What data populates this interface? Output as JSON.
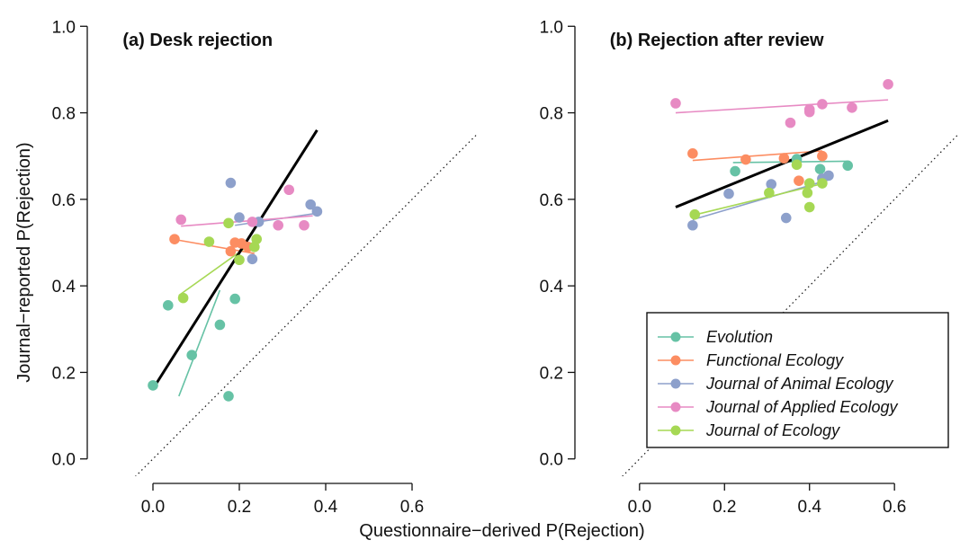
{
  "figure": {
    "ylabel": "Journal−reported P(Rejection)",
    "xlabel": "Questionnaire−derived P(Rejection)"
  },
  "colors": {
    "Evolution": "#66c2a5",
    "Functional Ecology": "#fc8d62",
    "Journal of Animal Ecology": "#8da0cb",
    "Journal of Applied Ecology": "#e78ac3",
    "Journal of Ecology": "#a6d854",
    "overall": "#000000"
  },
  "legend": {
    "placement": "bottom-right of panel b",
    "entries": [
      "Evolution",
      "Functional Ecology",
      "Journal of Animal Ecology",
      "Journal of Applied Ecology",
      "Journal of Ecology"
    ]
  },
  "chart_data": [
    {
      "type": "scatter",
      "panel_label": "(a)",
      "title": "Desk rejection",
      "xlim": [
        -0.15,
        0.75
      ],
      "ylim": [
        -0.04,
        1.04
      ],
      "xticks": [
        "0.0",
        "0.2",
        "0.4",
        "0.6"
      ],
      "yticks": [
        "0.0",
        "0.2",
        "0.4",
        "0.6",
        "0.8",
        "1.0"
      ],
      "reference_line": "y = x (dotted)",
      "series": [
        {
          "name": "Evolution",
          "points": [
            [
              0.0,
              0.17
            ],
            [
              0.035,
              0.355
            ],
            [
              0.09,
              0.24
            ],
            [
              0.155,
              0.31
            ],
            [
              0.175,
              0.145
            ],
            [
              0.19,
              0.37
            ]
          ],
          "fit": [
            [
              0.06,
              0.145
            ],
            [
              0.155,
              0.39
            ]
          ]
        },
        {
          "name": "Functional Ecology",
          "points": [
            [
              0.05,
              0.508
            ],
            [
              0.18,
              0.48
            ],
            [
              0.19,
              0.5
            ],
            [
              0.205,
              0.498
            ],
            [
              0.22,
              0.49
            ]
          ],
          "fit": [
            [
              0.045,
              0.508
            ],
            [
              0.235,
              0.475
            ]
          ]
        },
        {
          "name": "Journal of Animal Ecology",
          "points": [
            [
              0.18,
              0.638
            ],
            [
              0.2,
              0.558
            ],
            [
              0.23,
              0.462
            ],
            [
              0.245,
              0.548
            ],
            [
              0.365,
              0.588
            ],
            [
              0.38,
              0.572
            ]
          ],
          "fit": [
            [
              0.19,
              0.54
            ],
            [
              0.38,
              0.568
            ]
          ]
        },
        {
          "name": "Journal of Applied Ecology",
          "points": [
            [
              0.065,
              0.553
            ],
            [
              0.23,
              0.548
            ],
            [
              0.29,
              0.54
            ],
            [
              0.315,
              0.622
            ],
            [
              0.35,
              0.54
            ]
          ],
          "fit": [
            [
              0.065,
              0.538
            ],
            [
              0.37,
              0.562
            ]
          ]
        },
        {
          "name": "Journal of Ecology",
          "points": [
            [
              0.07,
              0.372
            ],
            [
              0.13,
              0.502
            ],
            [
              0.175,
              0.545
            ],
            [
              0.2,
              0.46
            ],
            [
              0.235,
              0.49
            ],
            [
              0.24,
              0.508
            ]
          ],
          "fit": [
            [
              0.06,
              0.378
            ],
            [
              0.245,
              0.51
            ]
          ]
        },
        {
          "name": "overall",
          "fit": [
            [
              0.0,
              0.162
            ],
            [
              0.38,
              0.76
            ]
          ]
        }
      ]
    },
    {
      "type": "scatter",
      "panel_label": "(b)",
      "title": "Rejection after review",
      "xlim": [
        -0.15,
        0.75
      ],
      "ylim": [
        -0.04,
        1.04
      ],
      "xticks": [
        "0.0",
        "0.2",
        "0.4",
        "0.6"
      ],
      "yticks": [
        "0.0",
        "0.2",
        "0.4",
        "0.6",
        "0.8",
        "1.0"
      ],
      "reference_line": "y = x (dotted)",
      "series": [
        {
          "name": "Evolution",
          "points": [
            [
              0.225,
              0.665
            ],
            [
              0.37,
              0.693
            ],
            [
              0.425,
              0.67
            ],
            [
              0.49,
              0.678
            ]
          ],
          "fit": [
            [
              0.22,
              0.685
            ],
            [
              0.49,
              0.688
            ]
          ]
        },
        {
          "name": "Functional Ecology",
          "points": [
            [
              0.125,
              0.706
            ],
            [
              0.25,
              0.692
            ],
            [
              0.34,
              0.695
            ],
            [
              0.375,
              0.643
            ],
            [
              0.43,
              0.7
            ]
          ],
          "fit": [
            [
              0.125,
              0.69
            ],
            [
              0.43,
              0.712
            ]
          ]
        },
        {
          "name": "Journal of Animal Ecology",
          "points": [
            [
              0.125,
              0.54
            ],
            [
              0.21,
              0.613
            ],
            [
              0.31,
              0.635
            ],
            [
              0.345,
              0.557
            ],
            [
              0.43,
              0.648
            ],
            [
              0.445,
              0.655
            ]
          ],
          "fit": [
            [
              0.125,
              0.553
            ],
            [
              0.445,
              0.645
            ]
          ]
        },
        {
          "name": "Journal of Applied Ecology",
          "points": [
            [
              0.085,
              0.822
            ],
            [
              0.355,
              0.777
            ],
            [
              0.4,
              0.808
            ],
            [
              0.4,
              0.802
            ],
            [
              0.43,
              0.82
            ],
            [
              0.5,
              0.812
            ],
            [
              0.585,
              0.866
            ]
          ],
          "fit": [
            [
              0.085,
              0.8
            ],
            [
              0.585,
              0.83
            ]
          ]
        },
        {
          "name": "Journal of Ecology",
          "points": [
            [
              0.13,
              0.565
            ],
            [
              0.305,
              0.615
            ],
            [
              0.37,
              0.68
            ],
            [
              0.395,
              0.615
            ],
            [
              0.4,
              0.637
            ],
            [
              0.4,
              0.582
            ],
            [
              0.43,
              0.637
            ]
          ],
          "fit": [
            [
              0.125,
              0.563
            ],
            [
              0.43,
              0.636
            ]
          ]
        },
        {
          "name": "overall",
          "fit": [
            [
              0.085,
              0.582
            ],
            [
              0.585,
              0.782
            ]
          ]
        }
      ]
    }
  ]
}
